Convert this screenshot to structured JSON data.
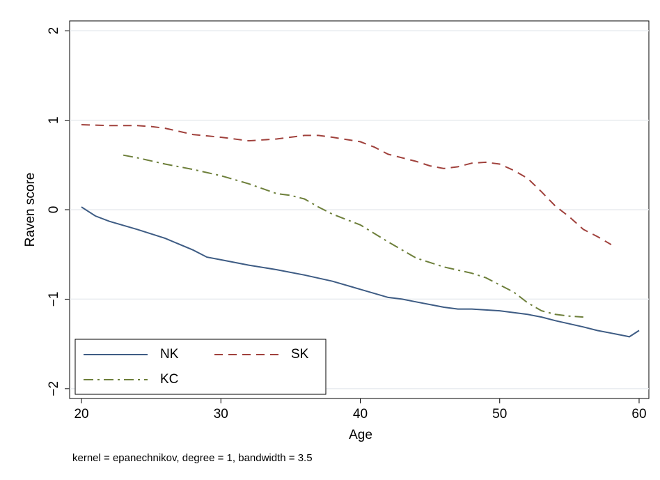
{
  "chart_data": {
    "type": "line",
    "y_label": "Raven score",
    "x_label": "Age",
    "note": "kernel = epanechnikov, degree = 1, bandwidth = 3.5",
    "xlim": [
      19.15,
      60.7
    ],
    "ylim": [
      -2.11,
      2.11
    ],
    "xticks": [
      20,
      30,
      40,
      50,
      60
    ],
    "yticks": [
      {
        "value": -2,
        "label": "−2"
      },
      {
        "value": -1,
        "label": "−1"
      },
      0,
      1,
      2
    ],
    "grid": true,
    "legend": "bottom-left",
    "series": [
      {
        "name": "NK",
        "color": "#3e5c84",
        "dash": "solid",
        "x": [
          20,
          21,
          22,
          24,
          26,
          28,
          29,
          30,
          32,
          34,
          36,
          38,
          40,
          42,
          43,
          44,
          46,
          47,
          48,
          50,
          52,
          53,
          54,
          56,
          57,
          58,
          59,
          59.3,
          60
        ],
        "values": [
          0.03,
          -0.07,
          -0.13,
          -0.22,
          -0.32,
          -0.45,
          -0.53,
          -0.56,
          -0.62,
          -0.67,
          -0.73,
          -0.8,
          -0.89,
          -0.98,
          -1.0,
          -1.03,
          -1.09,
          -1.11,
          -1.11,
          -1.13,
          -1.17,
          -1.2,
          -1.24,
          -1.31,
          -1.35,
          -1.38,
          -1.41,
          -1.42,
          -1.35
        ]
      },
      {
        "name": "SK",
        "color": "#a0413c",
        "dash": "dashed",
        "x": [
          20,
          22,
          24,
          25,
          26,
          28,
          30,
          32,
          34,
          36,
          37,
          38,
          40,
          41,
          42,
          44,
          45,
          46,
          47,
          48,
          49,
          50,
          51,
          52,
          53,
          54,
          55,
          56,
          57,
          58
        ],
        "values": [
          0.95,
          0.94,
          0.94,
          0.93,
          0.91,
          0.84,
          0.81,
          0.77,
          0.79,
          0.83,
          0.83,
          0.81,
          0.76,
          0.7,
          0.62,
          0.54,
          0.49,
          0.46,
          0.48,
          0.52,
          0.53,
          0.51,
          0.44,
          0.35,
          0.2,
          0.04,
          -0.08,
          -0.22,
          -0.3,
          -0.39
        ]
      },
      {
        "name": "KC",
        "color": "#6d7f3a",
        "dash": "dashdot",
        "x": [
          23,
          24,
          26,
          28,
          30,
          32,
          34,
          35,
          36,
          37,
          38,
          40,
          42,
          44,
          46,
          48,
          49,
          50,
          51,
          52,
          53,
          54,
          55,
          56
        ],
        "values": [
          0.61,
          0.58,
          0.51,
          0.45,
          0.38,
          0.29,
          0.18,
          0.16,
          0.12,
          0.03,
          -0.05,
          -0.17,
          -0.36,
          -0.54,
          -0.64,
          -0.71,
          -0.76,
          -0.84,
          -0.92,
          -1.04,
          -1.13,
          -1.17,
          -1.19,
          -1.2
        ]
      }
    ]
  }
}
